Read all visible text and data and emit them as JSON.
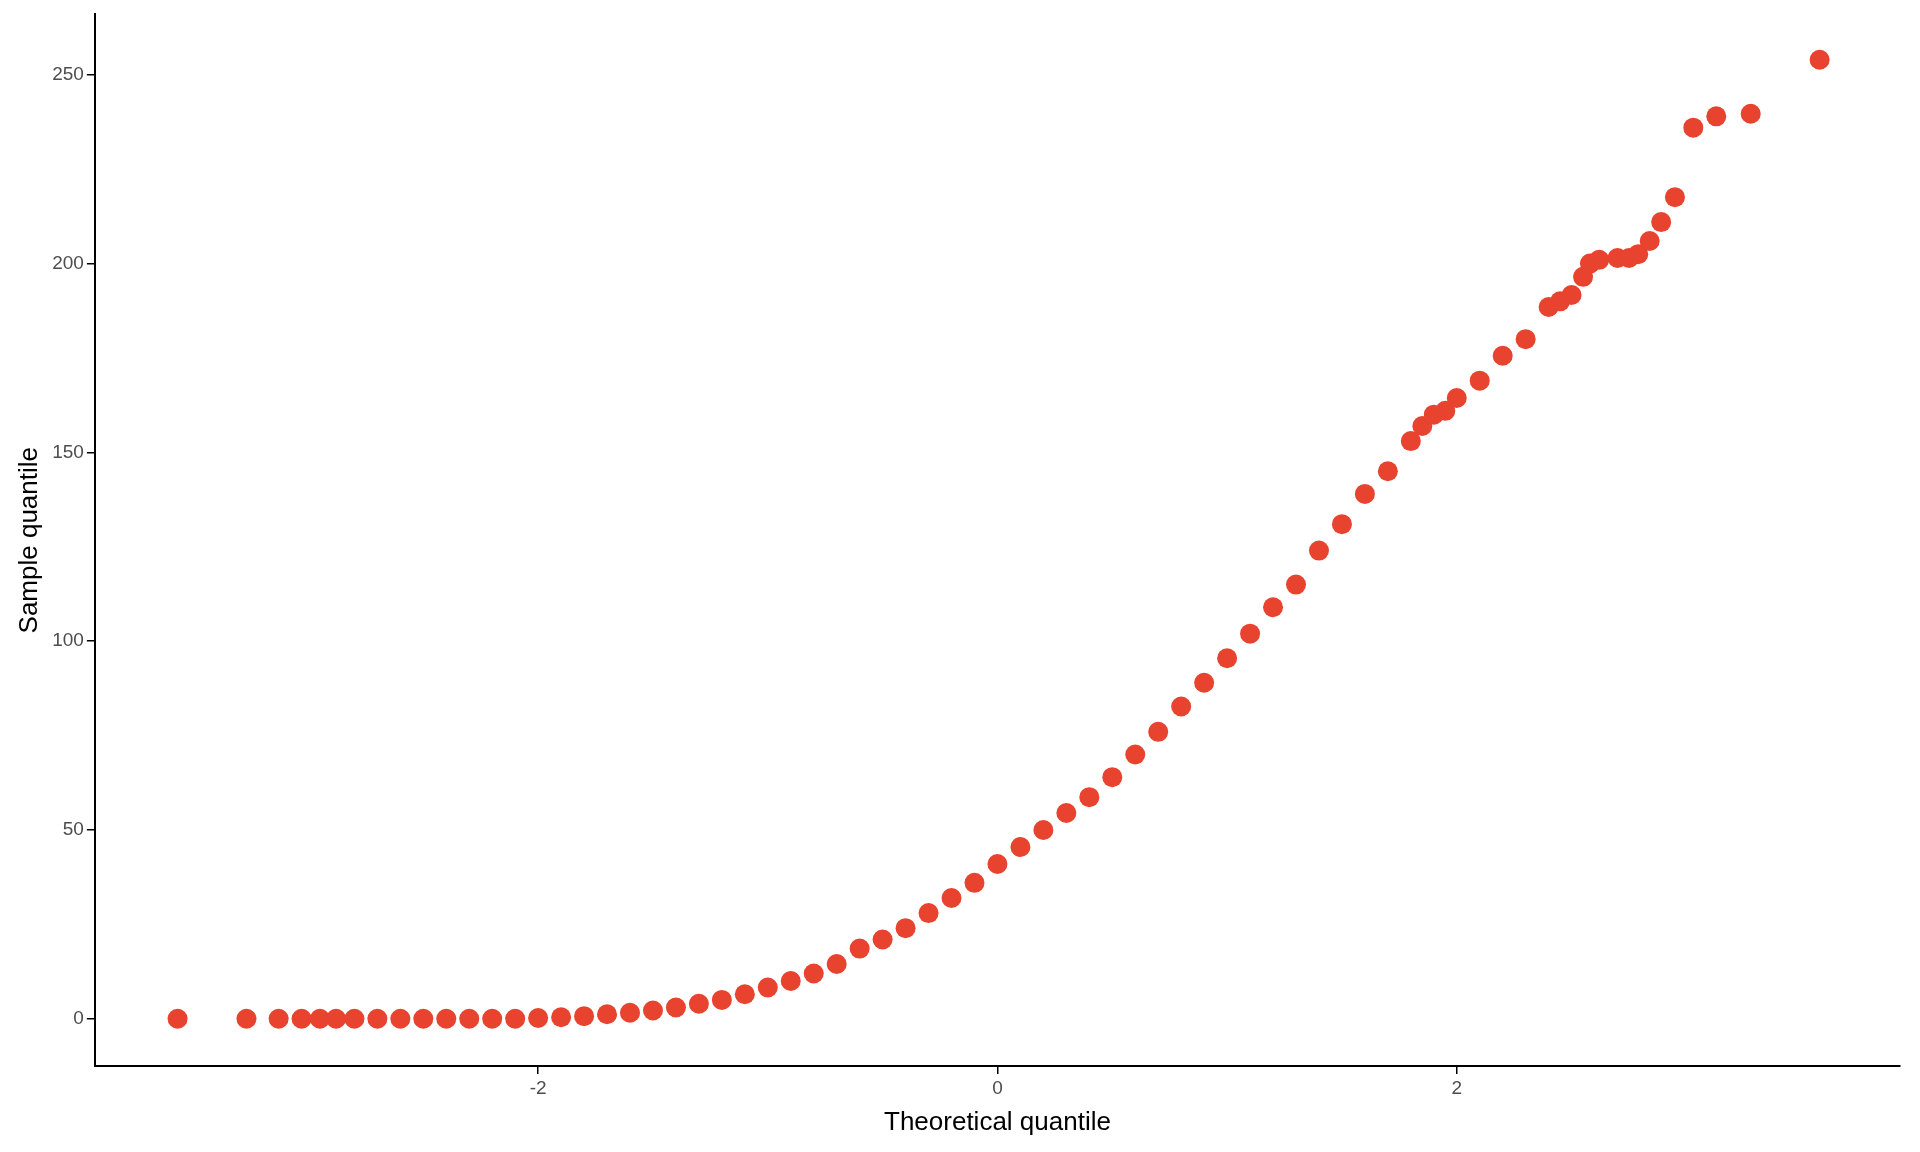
{
  "chart_data": {
    "type": "scatter",
    "xlabel": "Theoretical quantile",
    "ylabel": "Sample quantile",
    "xlim": [
      -3.93,
      3.93
    ],
    "ylim": [
      -12.5,
      266
    ],
    "xticks": [
      -2,
      0,
      2
    ],
    "yticks": [
      0,
      50,
      100,
      150,
      200,
      250
    ],
    "grid": false,
    "legend": false,
    "marker": "circle",
    "series": [
      {
        "color": "#e8432f",
        "x": [
          -3.57,
          -3.27,
          -3.13,
          -3.03,
          -2.95,
          -2.88,
          -2.8,
          -2.7,
          -2.6,
          -2.5,
          -2.4,
          -2.3,
          -2.2,
          -2.1,
          -2.0,
          -1.9,
          -1.8,
          -1.7,
          -1.6,
          -1.5,
          -1.4,
          -1.3,
          -1.2,
          -1.1,
          -1.0,
          -0.9,
          -0.8,
          -0.7,
          -0.6,
          -0.5,
          -0.4,
          -0.3,
          -0.2,
          -0.1,
          0,
          0.1,
          0.2,
          0.3,
          0.4,
          0.5,
          0.6,
          0.7,
          0.8,
          0.9,
          1.0,
          1.1,
          1.2,
          1.3,
          1.4,
          1.5,
          1.6,
          1.7,
          1.8,
          1.85,
          1.9,
          1.95,
          2.0,
          2.1,
          2.2,
          2.3,
          2.4,
          2.45,
          2.5,
          2.55,
          2.58,
          2.62,
          2.7,
          2.75,
          2.79,
          2.84,
          2.89,
          2.95,
          3.03,
          3.13,
          3.28,
          3.58
        ],
        "values": [
          0,
          0,
          0,
          0,
          0,
          0,
          0,
          0,
          0,
          0,
          0,
          0,
          0,
          0,
          0.2,
          0.4,
          0.7,
          1.2,
          1.6,
          2.2,
          3,
          4,
          5,
          6.5,
          8.3,
          10,
          12,
          14.5,
          18.6,
          21,
          24,
          28,
          32,
          36,
          41,
          45.5,
          50,
          54.5,
          58.7,
          64,
          70,
          76,
          82.7,
          89,
          95.5,
          102,
          109,
          115,
          124,
          131,
          139,
          145,
          153,
          157,
          160,
          161,
          164.4,
          169,
          175.6,
          180,
          188.5,
          190,
          191.7,
          196.5,
          200,
          201,
          201.5,
          201.5,
          202.5,
          206,
          211,
          217.6,
          236,
          239,
          239.7,
          254
        ]
      }
    ]
  }
}
